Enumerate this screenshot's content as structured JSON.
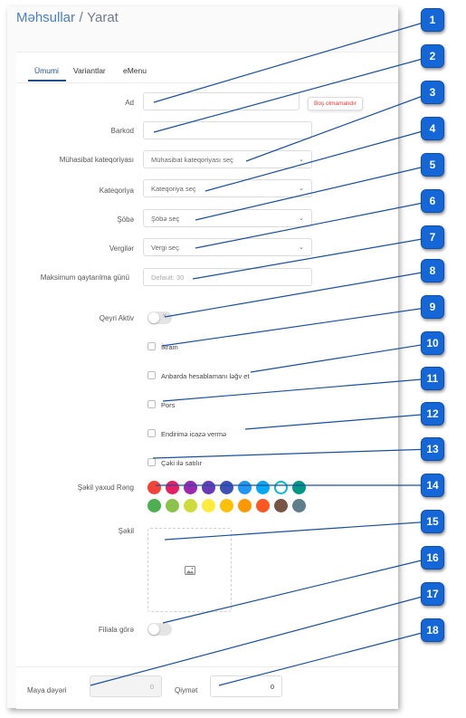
{
  "header": {
    "breadcrumb_parent": "Məhsullar",
    "separator": "/",
    "breadcrumb_current": "Yarat"
  },
  "tabs": [
    {
      "label": "Ümumi",
      "active": true
    },
    {
      "label": "Variantlar",
      "active": false
    },
    {
      "label": "eMenu",
      "active": false
    }
  ],
  "form": {
    "name": {
      "label": "Ad",
      "value": "",
      "error": "Boş olmamalıdır"
    },
    "barcode": {
      "label": "Barkod",
      "value": ""
    },
    "accounting_category": {
      "label": "Mühasibat kateqoriyası",
      "selected": "Mühasibat kateqoriyası seç"
    },
    "category": {
      "label": "Kateqoriya",
      "selected": "Kateqoriya seç"
    },
    "department": {
      "label": "Şöbə",
      "selected": "Şöbə seç"
    },
    "taxes": {
      "label": "Vergilər",
      "selected": "Vergi seç"
    },
    "max_return_days": {
      "label": "Maksimum qaytarılma günü",
      "placeholder": "Default: 30"
    },
    "inactive": {
      "label": "Qeyri Aktiv",
      "on": false
    },
    "checkboxes": [
      {
        "label": "İkram",
        "checked": false
      },
      {
        "label": "Anbarda hesablamanı ləğv et",
        "checked": false
      },
      {
        "label": "Pors",
        "checked": false
      },
      {
        "label": "Endirimə icazə vermə",
        "checked": false
      },
      {
        "label": "Çəki ilə satılır",
        "checked": false
      }
    ],
    "image_or_color": {
      "label": "Şəkil yaxud Rəng",
      "colors_row1": [
        "#f44336",
        "#e91e63",
        "#9c27b0",
        "#673ab7",
        "#3f51b5",
        "#2196f3",
        "#03a9f4",
        "#00bcd4",
        "#009688"
      ],
      "colors_row2": [
        "#4caf50",
        "#8bc34a",
        "#cddc39",
        "#ffeb3b",
        "#ffc107",
        "#ff9800",
        "#ff5722",
        "#795548",
        "#607d8b"
      ],
      "selected_index_row1": 7
    },
    "image": {
      "label": "Şəkil",
      "icon": "image-icon"
    },
    "by_branch": {
      "label": "Filiala görə",
      "on": false
    },
    "cost_price": {
      "label": "Maya dəyəri",
      "value": "0"
    },
    "price": {
      "label": "Qiymət",
      "value": "0"
    }
  },
  "callouts": [
    "1",
    "2",
    "3",
    "4",
    "5",
    "6",
    "7",
    "8",
    "9",
    "10",
    "11",
    "12",
    "13",
    "14",
    "15",
    "16",
    "17",
    "18"
  ],
  "colors": {
    "accent": "#1e4f8c",
    "badge": "#1566d6",
    "error": "#e53935"
  }
}
